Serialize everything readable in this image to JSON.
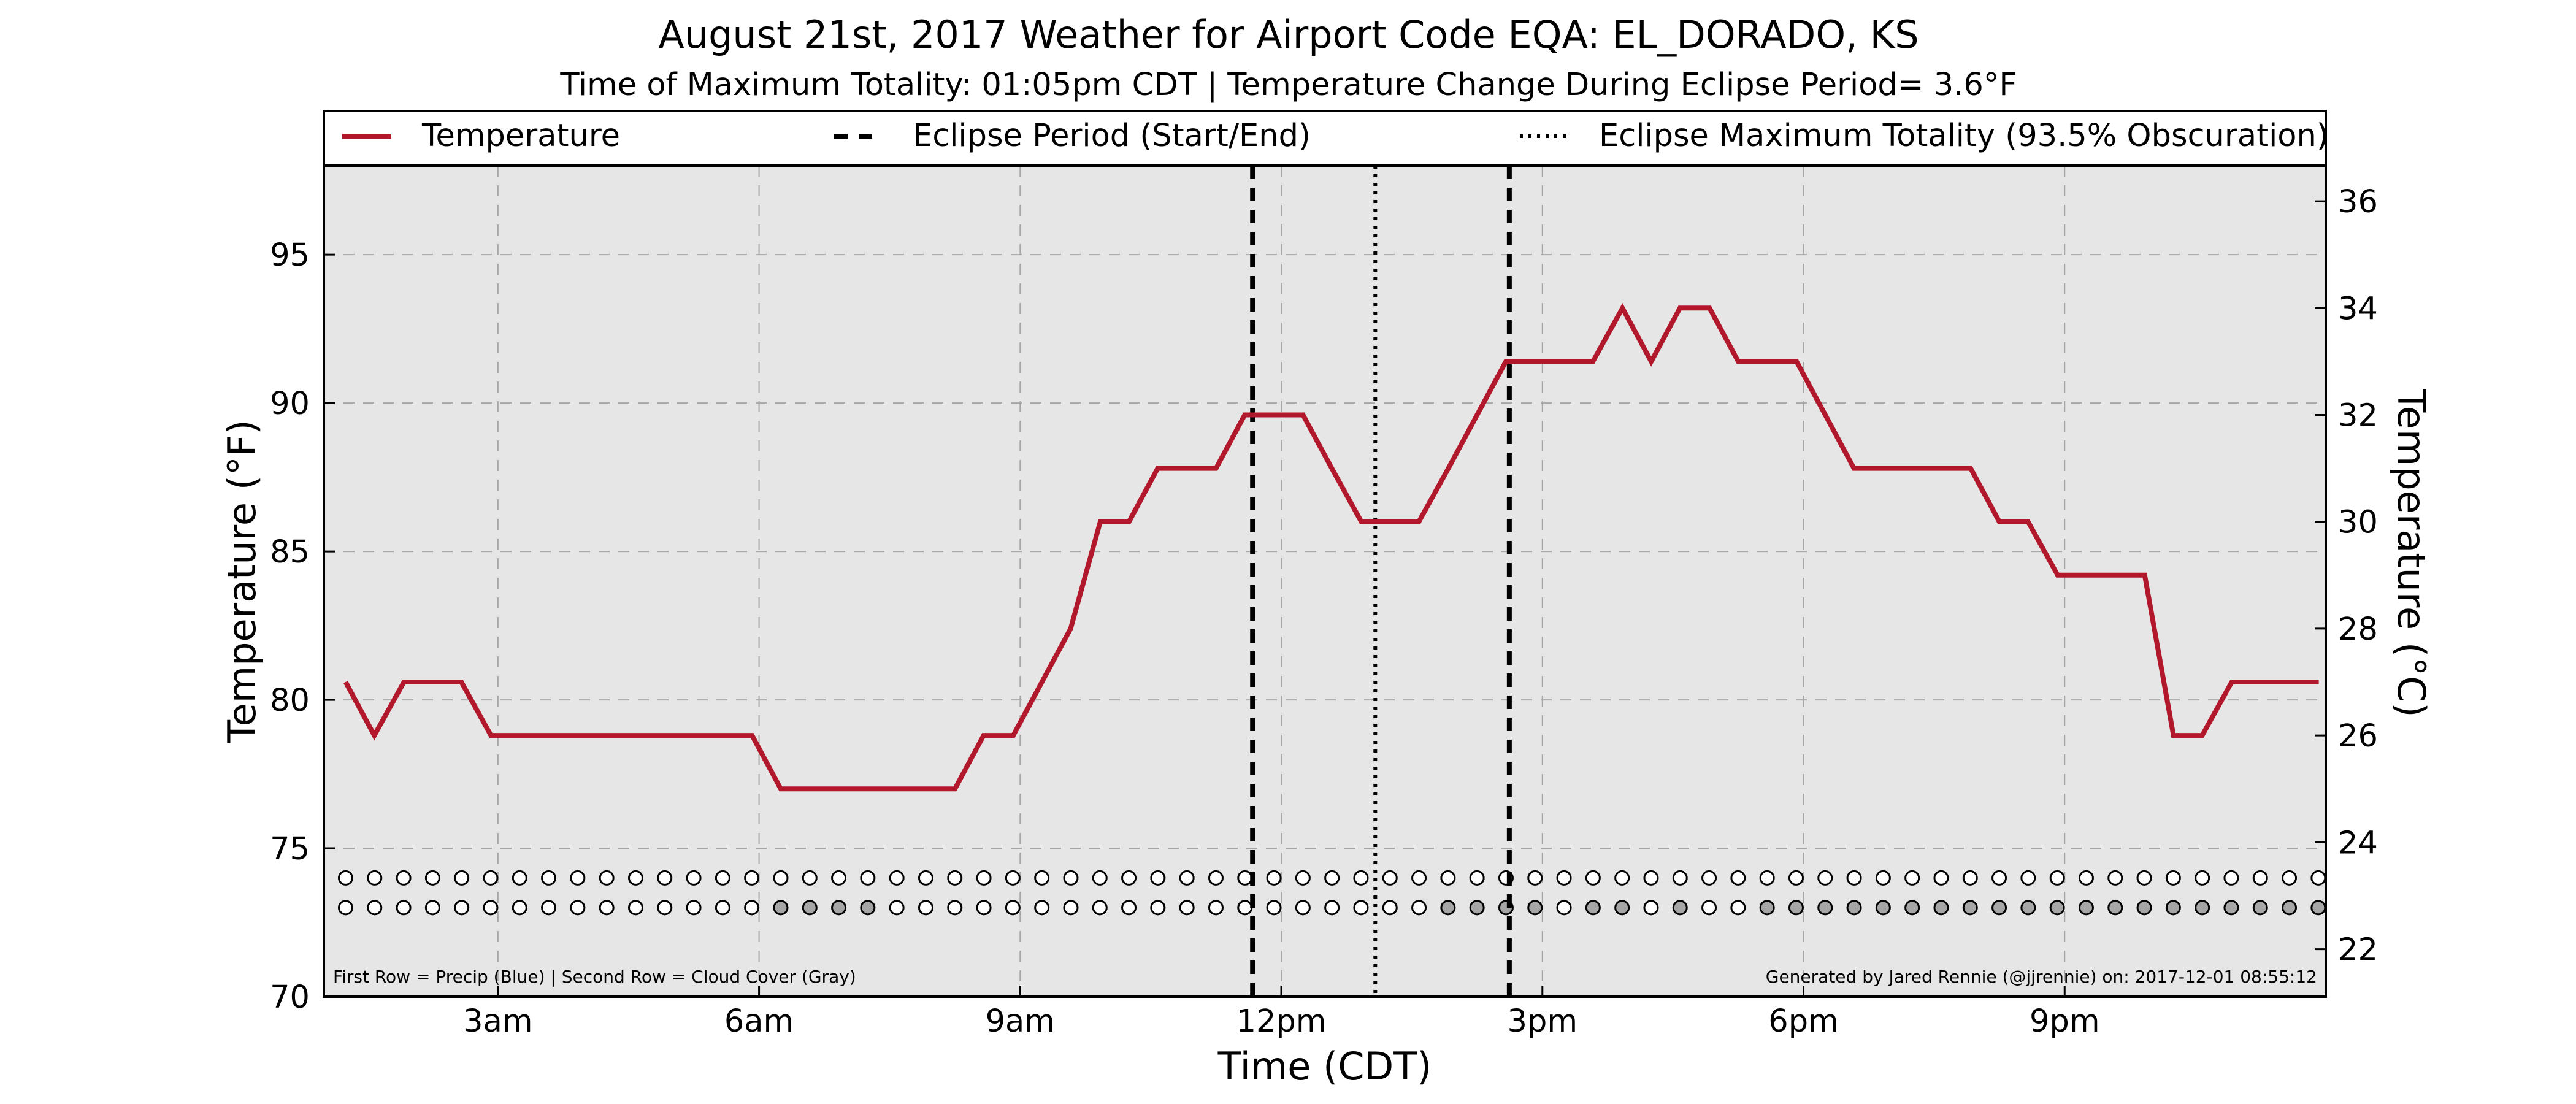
{
  "chart_data": {
    "type": "line",
    "title": "August 21st, 2017 Weather for Airport Code EQA: EL_DORADO, KS",
    "subtitle": "Time of Maximum Totality: 01:05pm CDT | Temperature Change During Eclipse Period= 3.6°F",
    "xlabel": "Time (CDT)",
    "ylabel": "Temperature (°F)",
    "ylabel_right": "Temperature (°C)",
    "x_ticks": [
      "3am",
      "6am",
      "9am",
      "12pm",
      "3pm",
      "6pm",
      "9pm"
    ],
    "x_tick_hours": [
      3,
      6,
      9,
      12,
      15,
      18,
      21
    ],
    "xlim_hours": [
      1,
      24
    ],
    "ylim": [
      70,
      98
    ],
    "y_ticks": [
      70,
      75,
      80,
      85,
      90,
      95
    ],
    "y_ticks_c": [
      22,
      24,
      26,
      28,
      30,
      32,
      34,
      36
    ],
    "grid": true,
    "legend": {
      "placement": "top",
      "entries": [
        {
          "label": "Temperature",
          "style": "solid",
          "color": "#b2182b"
        },
        {
          "label": "Eclipse Period (Start/End)",
          "style": "dashed",
          "color": "#000000"
        },
        {
          "label": "Eclipse Maximum Totality (93.5% Obscuration)",
          "style": "dotted",
          "color": "#000000"
        }
      ]
    },
    "series": [
      {
        "name": "Temperature",
        "color": "#b2182b",
        "x_hours": [
          1.25,
          1.58,
          1.92,
          2.25,
          2.58,
          2.92,
          3.25,
          3.58,
          3.92,
          4.25,
          4.58,
          4.92,
          5.25,
          5.58,
          5.92,
          6.25,
          6.58,
          6.92,
          7.25,
          7.58,
          7.92,
          8.25,
          8.58,
          8.92,
          9.25,
          9.58,
          9.92,
          10.25,
          10.58,
          10.92,
          11.25,
          11.58,
          11.92,
          12.25,
          12.58,
          12.92,
          13.25,
          13.58,
          13.92,
          14.25,
          14.58,
          14.92,
          15.25,
          15.58,
          15.92,
          16.25,
          16.58,
          16.92,
          17.25,
          17.58,
          17.92,
          18.25,
          18.58,
          18.92,
          19.25,
          19.58,
          19.92,
          20.25,
          20.58,
          20.92,
          21.25,
          21.58,
          21.92,
          22.25,
          22.58,
          22.92,
          23.25,
          23.58,
          23.92
        ],
        "values_f": [
          80.6,
          78.8,
          80.6,
          80.6,
          80.6,
          78.8,
          78.8,
          78.8,
          78.8,
          78.8,
          78.8,
          78.8,
          78.8,
          78.8,
          78.8,
          77.0,
          77.0,
          77.0,
          77.0,
          77.0,
          77.0,
          77.0,
          78.8,
          78.8,
          80.6,
          82.4,
          86.0,
          86.0,
          87.8,
          87.8,
          87.8,
          89.6,
          89.6,
          89.6,
          87.8,
          86.0,
          86.0,
          86.0,
          87.8,
          89.6,
          91.4,
          91.4,
          91.4,
          91.4,
          93.2,
          91.4,
          93.2,
          93.2,
          91.4,
          91.4,
          91.4,
          89.6,
          87.8,
          87.8,
          87.8,
          87.8,
          87.8,
          86.0,
          86.0,
          84.2,
          84.2,
          84.2,
          84.2,
          78.8,
          78.8,
          80.6,
          80.6,
          80.6,
          80.6
        ]
      }
    ],
    "eclipse_start_hour": 11.67,
    "eclipse_max_hour": 13.08,
    "eclipse_end_hour": 14.62,
    "marker_rows": {
      "precip_y": 74,
      "cloud_y": 73,
      "x_start_hour": 1.25,
      "x_step_hour": 0.3333,
      "count": 69,
      "precip_filled_color": "#1f77b4",
      "cloud_filled_color": "#a6a6a6",
      "cloud_filled_indices": [
        15,
        16,
        17,
        18,
        38,
        39,
        40,
        41,
        43,
        44,
        46,
        49,
        50,
        51,
        52,
        53,
        54,
        55,
        56,
        57,
        58,
        59,
        60,
        61,
        62,
        63,
        64,
        65,
        66,
        67,
        68
      ]
    },
    "footnote_left": "First Row = Precip (Blue) | Second Row = Cloud Cover (Gray)",
    "footnote_right": "Generated by Jared Rennie (@jjrennie) on: 2017-12-01 08:55:12"
  }
}
